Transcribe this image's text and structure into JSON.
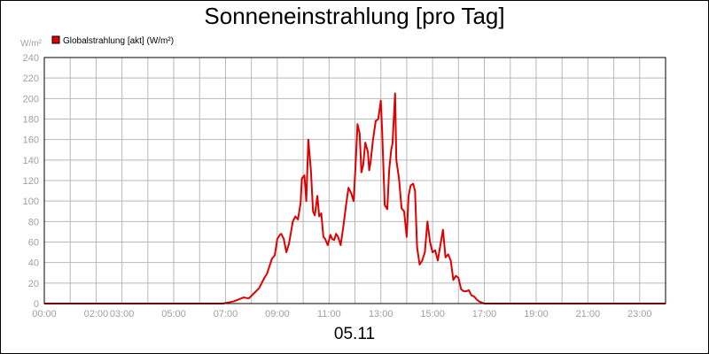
{
  "chart_data": {
    "type": "line",
    "title": "Sonneneinstrahlung [pro Tag]",
    "ylabel": "W/m²",
    "xlabel": "05.11",
    "ylim": [
      0,
      240
    ],
    "xlim": [
      0,
      24
    ],
    "yticks": [
      "0",
      "20",
      "40",
      "60",
      "80",
      "100",
      "120",
      "140",
      "160",
      "180",
      "200",
      "220",
      "240"
    ],
    "xticks": [
      {
        "label": "00:00",
        "h": 0
      },
      {
        "label": "02:00",
        "h": 2
      },
      {
        "label": "03:00",
        "h": 3
      },
      {
        "label": "05:00",
        "h": 5
      },
      {
        "label": "07:00",
        "h": 7
      },
      {
        "label": "09:00",
        "h": 9
      },
      {
        "label": "11:00",
        "h": 11
      },
      {
        "label": "13:00",
        "h": 13
      },
      {
        "label": "15:00",
        "h": 15
      },
      {
        "label": "17:00",
        "h": 17
      },
      {
        "label": "19:00",
        "h": 19
      },
      {
        "label": "21:00",
        "h": 21
      },
      {
        "label": "23:00",
        "h": 23
      }
    ],
    "grid": true,
    "legend_position": "top-left",
    "colors": {
      "series": "#e00000",
      "grid": "#b8b8b8",
      "tick_text": "#a0a0a0"
    },
    "series": [
      {
        "name": "Globalstrahlung [akt] (W/m²)",
        "x": [
          0,
          6.9,
          7.1,
          7.3,
          7.5,
          7.7,
          7.9,
          8.1,
          8.3,
          8.5,
          8.6,
          8.8,
          8.9,
          9.0,
          9.1,
          9.15,
          9.25,
          9.35,
          9.45,
          9.6,
          9.7,
          9.8,
          9.9,
          9.95,
          10.05,
          10.12,
          10.2,
          10.3,
          10.38,
          10.45,
          10.55,
          10.62,
          10.7,
          10.78,
          10.85,
          10.95,
          11.05,
          11.12,
          11.2,
          11.27,
          11.35,
          11.45,
          11.55,
          11.65,
          11.75,
          11.85,
          11.95,
          12.02,
          12.1,
          12.18,
          12.25,
          12.32,
          12.4,
          12.5,
          12.55,
          12.6,
          12.7,
          12.8,
          12.9,
          13.0,
          13.05,
          13.15,
          13.25,
          13.32,
          13.4,
          13.45,
          13.55,
          13.6,
          13.7,
          13.8,
          13.9,
          14.0,
          14.07,
          14.15,
          14.25,
          14.32,
          14.4,
          14.5,
          14.6,
          14.7,
          14.8,
          14.9,
          15.0,
          15.1,
          15.2,
          15.3,
          15.4,
          15.5,
          15.6,
          15.7,
          15.8,
          15.9,
          16.0,
          16.1,
          16.2,
          16.3,
          16.4,
          16.5,
          16.6,
          16.7,
          16.8,
          16.9,
          17.0,
          17.1,
          17.2,
          17.3,
          17.5,
          18.0,
          24.0
        ],
        "values": [
          0,
          0,
          1,
          2,
          4,
          6,
          5,
          10,
          15,
          25,
          29,
          44,
          47,
          63,
          67,
          68,
          63,
          50,
          58,
          80,
          85,
          82,
          98,
          122,
          125,
          100,
          160,
          130,
          90,
          86,
          105,
          85,
          88,
          65,
          63,
          57,
          67,
          63,
          62,
          68,
          65,
          57,
          75,
          95,
          113,
          108,
          100,
          133,
          175,
          166,
          128,
          135,
          157,
          148,
          130,
          137,
          160,
          178,
          180,
          198,
          168,
          96,
          92,
          130,
          150,
          156,
          205,
          140,
          122,
          93,
          90,
          65,
          105,
          115,
          117,
          110,
          55,
          38,
          42,
          50,
          80,
          60,
          50,
          52,
          42,
          57,
          72,
          45,
          48,
          42,
          23,
          27,
          25,
          14,
          12,
          12,
          13,
          8,
          7,
          4,
          2,
          1,
          0,
          0,
          0,
          0,
          0,
          0,
          0
        ]
      }
    ]
  },
  "legend": {
    "label": "Globalstrahlung [akt] (W/m²)"
  },
  "footer": {
    "date": "05.11"
  }
}
